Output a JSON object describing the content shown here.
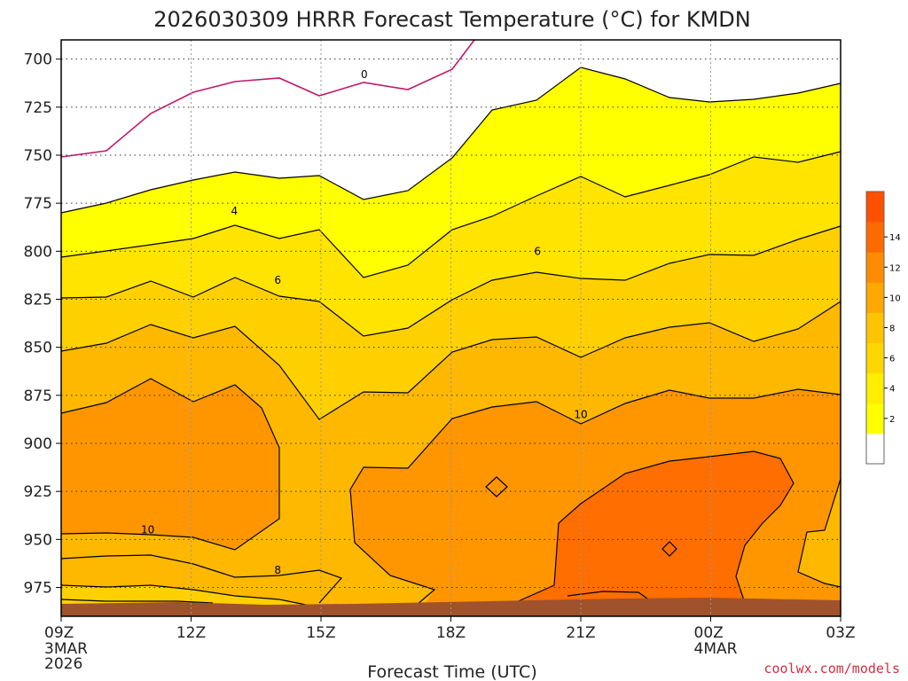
{
  "chart_data": {
    "type": "heatmap",
    "title": "2026030309 HRRR Forecast Temperature (°C) for KMDN",
    "xlabel": "Forecast Time (UTC)",
    "ylabel": "",
    "watermark": "coolwx.com/models",
    "x_ticks": [
      {
        "label": "09Z",
        "sub": [
          "3MAR",
          "2026"
        ]
      },
      {
        "label": "12Z",
        "sub": []
      },
      {
        "label": "15Z",
        "sub": []
      },
      {
        "label": "18Z",
        "sub": []
      },
      {
        "label": "21Z",
        "sub": []
      },
      {
        "label": "00Z",
        "sub": [
          "4MAR"
        ]
      },
      {
        "label": "03Z",
        "sub": []
      }
    ],
    "y_ticks": [
      700,
      725,
      750,
      775,
      800,
      825,
      850,
      875,
      900,
      925,
      950,
      975
    ],
    "ylim": [
      990,
      690
    ],
    "y_scale": "pressure (hPa), reversed",
    "grid": true,
    "colorbar": {
      "placement": "right",
      "levels": [
        2,
        4,
        6,
        8,
        10,
        12,
        14
      ],
      "colors": [
        "#ffffff",
        "#ffff00",
        "#ffee00",
        "#ffd700",
        "#ffc400",
        "#ffa800",
        "#ff8c00",
        "#ff6a00",
        "#ff5000"
      ]
    },
    "contour_labels": [
      {
        "text": "0",
        "hour": 7.0,
        "p": 708
      },
      {
        "text": "4",
        "hour": 4.0,
        "p": 779
      },
      {
        "text": "6",
        "hour": 5.0,
        "p": 815
      },
      {
        "text": "6",
        "hour": 11.0,
        "p": 800
      },
      {
        "text": "10",
        "hour": 12.0,
        "p": 885
      },
      {
        "text": "10",
        "hour": 2.0,
        "p": 945
      },
      {
        "text": "8",
        "hour": 5.0,
        "p": 966
      }
    ]
  }
}
